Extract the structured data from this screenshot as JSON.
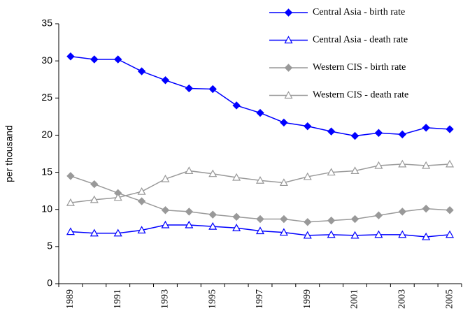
{
  "chart_data": {
    "type": "line",
    "y_label": "per thousand",
    "categories": [
      "1989",
      null,
      "1991",
      null,
      "1993",
      null,
      "1995",
      null,
      "1997",
      null,
      "1999",
      null,
      "2001",
      null,
      "2003",
      null,
      "2005"
    ],
    "ylim": [
      0,
      35
    ],
    "yticks": [
      0,
      5,
      10,
      15,
      20,
      25,
      30,
      35
    ],
    "legend": "top-right",
    "series": [
      {
        "name": "Central Asia - birth rate",
        "color": "#0000ff",
        "marker": "diamond",
        "values": [
          30.6,
          30.2,
          30.2,
          28.6,
          27.4,
          26.3,
          26.2,
          24.0,
          23.0,
          21.7,
          21.2,
          20.5,
          19.9,
          20.3,
          20.1,
          21.0,
          20.8
        ]
      },
      {
        "name": "Central Asia - death rate",
        "color": "#0000ff",
        "marker": "triangle",
        "values": [
          7.0,
          6.8,
          6.8,
          7.2,
          7.9,
          7.9,
          7.7,
          7.5,
          7.1,
          6.9,
          6.5,
          6.6,
          6.5,
          6.6,
          6.6,
          6.3,
          6.6
        ]
      },
      {
        "name": "Western CIS - birth rate",
        "color": "#999999",
        "marker": "diamond",
        "values": [
          14.5,
          13.4,
          12.2,
          11.1,
          9.9,
          9.7,
          9.3,
          9.0,
          8.7,
          8.7,
          8.3,
          8.5,
          8.7,
          9.2,
          9.7,
          10.1,
          9.9
        ]
      },
      {
        "name": "Western CIS - death rate",
        "color": "#999999",
        "marker": "triangle",
        "values": [
          10.9,
          11.3,
          11.6,
          12.4,
          14.1,
          15.2,
          14.8,
          14.3,
          13.9,
          13.6,
          14.4,
          15.0,
          15.2,
          15.9,
          16.1,
          15.9,
          16.1
        ]
      }
    ]
  }
}
